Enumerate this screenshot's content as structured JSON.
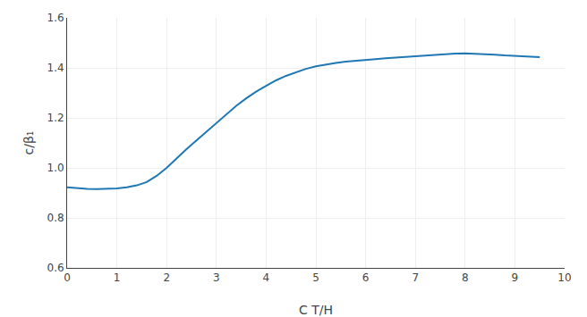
{
  "chart_data": {
    "type": "line",
    "x": [
      0.0,
      0.2,
      0.4,
      0.6,
      0.8,
      1.0,
      1.2,
      1.4,
      1.6,
      1.8,
      2.0,
      2.2,
      2.4,
      2.6,
      2.8,
      3.0,
      3.2,
      3.4,
      3.6,
      3.8,
      4.0,
      4.2,
      4.4,
      4.6,
      4.8,
      5.0,
      5.2,
      5.4,
      5.6,
      5.8,
      6.0,
      6.2,
      6.4,
      6.6,
      6.8,
      7.0,
      7.2,
      7.4,
      7.6,
      7.8,
      8.0,
      8.2,
      8.4,
      8.6,
      8.8,
      9.0,
      9.2,
      9.4,
      9.5
    ],
    "values": [
      0.922,
      0.918,
      0.916,
      0.915,
      0.916,
      0.918,
      0.922,
      0.93,
      0.943,
      0.968,
      1.0,
      1.038,
      1.075,
      1.11,
      1.145,
      1.18,
      1.215,
      1.248,
      1.278,
      1.305,
      1.328,
      1.35,
      1.368,
      1.383,
      1.396,
      1.406,
      1.414,
      1.42,
      1.425,
      1.429,
      1.432,
      1.435,
      1.438,
      1.441,
      1.444,
      1.447,
      1.45,
      1.453,
      1.455,
      1.457,
      1.458,
      1.457,
      1.455,
      1.453,
      1.45,
      1.448,
      1.446,
      1.444,
      1.443
    ],
    "xlabel": "C T/H",
    "ylabel": "c/β₁",
    "xlim": [
      0,
      10
    ],
    "xticks": [
      0,
      1,
      2,
      3,
      4,
      5,
      6,
      7,
      8,
      9,
      10
    ],
    "ylim": [
      0.6,
      1.6
    ],
    "yticks": [
      0.6,
      0.8,
      {
        "value": 1.0,
        "label": "1.0"
      },
      1.2,
      1.4,
      1.6
    ],
    "grid": true
  }
}
